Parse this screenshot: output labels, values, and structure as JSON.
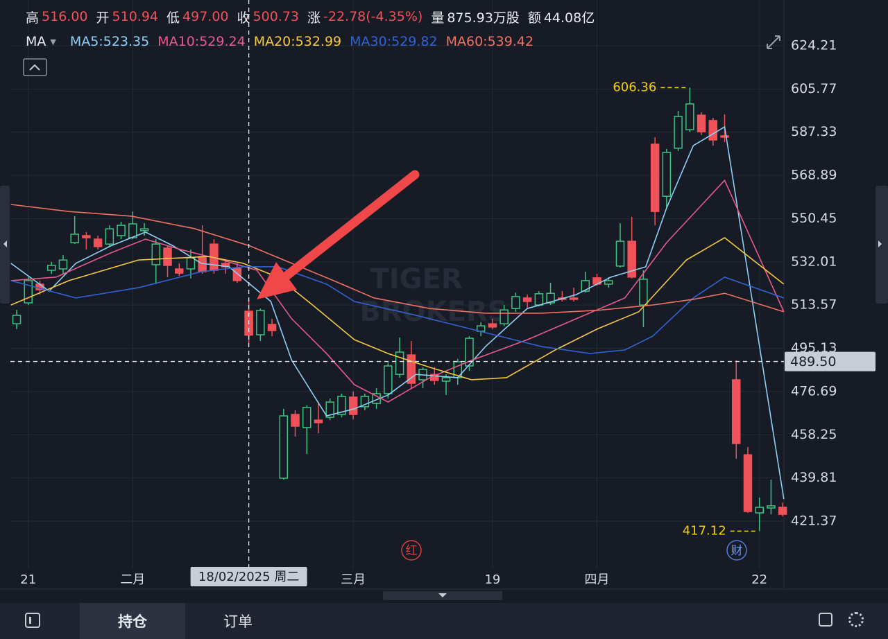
{
  "header": {
    "stats": [
      {
        "label": "高",
        "value": "516.00",
        "color": "#f0525a"
      },
      {
        "label": "开",
        "value": "510.94",
        "color": "#f0525a"
      },
      {
        "label": "低",
        "value": "497.00",
        "color": "#f0525a"
      },
      {
        "label": "收",
        "value": "500.73",
        "color": "#f0525a"
      },
      {
        "label": "涨",
        "value": "-22.78(-4.35%)",
        "color": "#f0525a"
      },
      {
        "label": "量",
        "value": "875.93万股",
        "color": "#e8ebf0"
      },
      {
        "label": "额",
        "value": "44.08亿",
        "color": "#e8ebf0"
      }
    ],
    "indicator": "MA"
  },
  "chart_data": {
    "type": "candlestick",
    "xlim": [
      -0.54,
      66.11
    ],
    "ylim": [
      402.74,
      631.9
    ],
    "yticks": [
      624.21,
      605.77,
      587.33,
      568.89,
      550.45,
      532.01,
      513.57,
      495.13,
      476.69,
      458.25,
      439.81,
      421.37
    ],
    "xticks": [
      {
        "value": 1,
        "label": "21"
      },
      {
        "value": 10,
        "label": "二月"
      },
      {
        "value": 29,
        "label": "三月"
      },
      {
        "value": 41,
        "label": "19"
      },
      {
        "value": 50,
        "label": "四月"
      },
      {
        "value": 64,
        "label": "22"
      }
    ],
    "grid": true,
    "up_color": "#3bc480",
    "down_color": "#f0525a",
    "candles": {
      "open": [
        505.6,
        514.5,
        522.5,
        528.4,
        529.0,
        540.2,
        543.2,
        541.7,
        539.6,
        543.2,
        542.3,
        545.3,
        530.8,
        537.9,
        529.0,
        529.0,
        534.3,
        539.6,
        531.4,
        529.3,
        510.94,
        500.9,
        505.3,
        439.7,
        466.9,
        461.3,
        464.5,
        465.7,
        466.9,
        474.3,
        470.2,
        471.6,
        475.8,
        484.0,
        492.3,
        481.7,
        484.0,
        481.1,
        482.6,
        487.6,
        502.4,
        505.6,
        505.6,
        512.1,
        516.6,
        513.6,
        514.5,
        516.6,
        516.6,
        519.5,
        525.2,
        522.5,
        530.2,
        540.8,
        513.6,
        582.2,
        560.0,
        580.5,
        588.4,
        594.6,
        592.3,
        585.8,
        481.7,
        449.7,
        424.9,
        427.0,
        427.3
      ],
      "high": [
        511.5,
        525.5,
        524.0,
        532.0,
        534.9,
        551.5,
        544.7,
        543.2,
        547.6,
        549.1,
        553.5,
        548.5,
        541.7,
        538.8,
        531.4,
        537.3,
        547.6,
        541.7,
        532.8,
        531.4,
        516,
        512.1,
        507.7,
        469.3,
        468.7,
        470.8,
        472.2,
        473.7,
        475.8,
        476.7,
        475.8,
        478.1,
        489.1,
        499.7,
        498.2,
        487.0,
        487.0,
        484.0,
        490.6,
        500.3,
        506.2,
        507.7,
        513.6,
        518.9,
        518.1,
        519.5,
        523.1,
        519.5,
        521.0,
        527.8,
        526.9,
        525.5,
        548.5,
        551.2,
        528.4,
        585.2,
        580.2,
        596.4,
        606.36,
        595.8,
        593.5,
        594.9,
        490.0,
        453.0,
        431.4,
        439.1,
        429.3
      ],
      "low": [
        503.3,
        513.6,
        518.1,
        526.9,
        526.9,
        539.6,
        537.3,
        537.3,
        538.8,
        541.7,
        541.7,
        543.2,
        522.5,
        525.5,
        526.0,
        524.9,
        526.9,
        526.9,
        526.9,
        523.1,
        497,
        498.2,
        500.3,
        439.1,
        457.4,
        450.0,
        458.9,
        464.5,
        465.7,
        464.8,
        468.7,
        469.3,
        473.7,
        482.6,
        478.1,
        478.1,
        479.6,
        475.2,
        479.6,
        485.5,
        500.3,
        503.3,
        504.7,
        510.7,
        512.1,
        513.0,
        513.6,
        515.1,
        515.1,
        518.9,
        521.9,
        521.0,
        529.6,
        524.9,
        504.2,
        547.6,
        555.0,
        579.3,
        587.5,
        586.1,
        581.6,
        583.1,
        448.0,
        424.9,
        417.12,
        424.3,
        423.4
      ],
      "close": [
        509.2,
        524.0,
        520.1,
        530.5,
        532.8,
        543.8,
        542.3,
        538.5,
        546.1,
        547.6,
        548.2,
        546.1,
        539.6,
        530.5,
        527.2,
        533.7,
        527.8,
        528.4,
        529.9,
        524.0,
        500.73,
        511.3,
        502.7,
        466.3,
        461.9,
        469.9,
        463.4,
        472.2,
        474.6,
        466.9,
        474.6,
        475.8,
        487.6,
        493.5,
        480.2,
        486.1,
        481.4,
        482.6,
        489.4,
        499.4,
        504.7,
        504.2,
        511.5,
        517.2,
        515.1,
        518.4,
        518.6,
        516.0,
        516.0,
        524.0,
        522.5,
        524.0,
        540.8,
        525.5,
        524.6,
        553.5,
        578.7,
        594.0,
        599.4,
        587.5,
        584.0,
        585.2,
        454.5,
        425.5,
        427.3,
        427.9,
        424.3
      ]
    },
    "series": [
      {
        "name": "MA5:523.35",
        "color": "#8fd0f5",
        "x": [
          -0.5,
          2.8,
          5.1,
          8.1,
          11.1,
          13.5,
          15.9,
          18.3,
          20.1,
          21.9,
          23.7,
          26.7,
          29.1,
          32.0,
          34.4,
          38.0,
          40.4,
          44.0,
          48.2,
          51.2,
          54.2,
          56.0,
          58.3,
          61.0,
          66.1
        ],
        "values": [
          531.4,
          519.5,
          531.4,
          538.8,
          544.7,
          538.8,
          531.4,
          529.9,
          522.5,
          515.1,
          490.0,
          466.3,
          469.3,
          475.2,
          484.0,
          482.6,
          495.9,
          512.1,
          518.0,
          525.5,
          529.9,
          555.0,
          581.6,
          589.6,
          430.8
        ]
      },
      {
        "name": "MA10:529.24",
        "color": "#e85a8c",
        "x": [
          -0.5,
          3.4,
          8.1,
          11.1,
          14.1,
          17.7,
          20.7,
          23.7,
          26.7,
          29.1,
          32.0,
          35.6,
          39.2,
          44.0,
          48.2,
          52.4,
          56.0,
          61.0,
          66.1
        ],
        "values": [
          524.0,
          525.5,
          535.8,
          541.7,
          537.3,
          532.8,
          528.4,
          507.7,
          492.9,
          479.6,
          472.2,
          482.6,
          490.0,
          498.8,
          507.7,
          516.6,
          540.2,
          566.8,
          510.7
        ]
      },
      {
        "name": "MA20:532.99",
        "color": "#f5c842",
        "x": [
          -0.5,
          4.5,
          10.5,
          16.5,
          19.5,
          22.5,
          25.5,
          29.1,
          32.0,
          35.6,
          39.2,
          42.2,
          46.4,
          50.0,
          53.6,
          57.7,
          61.0,
          66.1
        ],
        "values": [
          513.6,
          524.0,
          532.8,
          534.3,
          531.4,
          525.5,
          513.6,
          498.8,
          492.9,
          487.0,
          481.7,
          482.6,
          494.4,
          503.3,
          510.7,
          532.8,
          542.3,
          522.5
        ]
      },
      {
        "name": "MA30:529.82",
        "color": "#3263d4",
        "x": [
          -0.5,
          5.1,
          10.5,
          15.9,
          19.5,
          22.5,
          26.7,
          29.1,
          34.4,
          40.4,
          45.2,
          49.4,
          52.4,
          54.8,
          58.3,
          61.0,
          66.1
        ],
        "values": [
          524.0,
          516.6,
          521.0,
          527.8,
          529.9,
          529.9,
          522.5,
          515.1,
          509.2,
          501.8,
          495.9,
          492.9,
          494.4,
          500.3,
          516.6,
          525.5,
          516.6
        ]
      },
      {
        "name": "MA60:539.42",
        "color": "#f07262",
        "x": [
          -0.5,
          4.5,
          9.9,
          15.3,
          20.1,
          23.7,
          27.3,
          30.8,
          35.6,
          40.4,
          45.2,
          50.0,
          54.8,
          58.3,
          61.0,
          66.1
        ],
        "values": [
          556.5,
          553.5,
          551.5,
          546.2,
          538.8,
          531.4,
          524.0,
          516.6,
          512.1,
          510.1,
          510.1,
          511.3,
          513.6,
          516.0,
          518.6,
          510.7
        ]
      }
    ],
    "annotations": [
      {
        "value": 606.36,
        "label": "606.36"
      },
      {
        "value": 417.12,
        "label": "417.12"
      }
    ],
    "crosshair": {
      "x": 20,
      "label": "18/02/2025 周二",
      "price": {
        "value": 489.5,
        "label": "489.50"
      }
    },
    "events": [
      "红",
      "财"
    ],
    "watermark": [
      "TIGER",
      "BROKERS"
    ]
  },
  "tabs": [
    "持仓",
    "订单"
  ]
}
